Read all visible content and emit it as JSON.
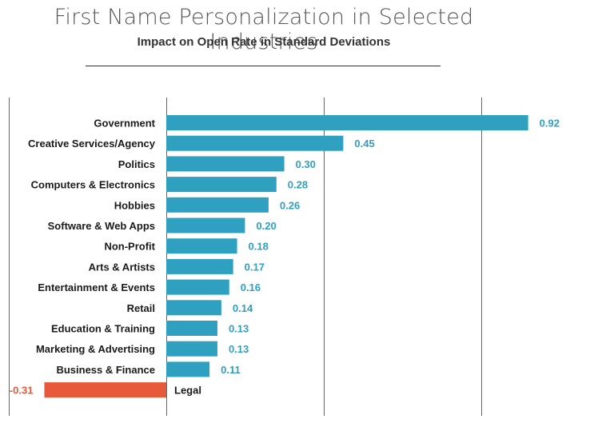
{
  "title": "First Name Personalization in Selected Industries",
  "subtitle": "Impact on Open Rate in Standard Deviations",
  "colors": {
    "positive": "#2fa0c0",
    "negative": "#e8583a",
    "label_positive": "#2fa0c0",
    "label_negative": "#e8583a"
  },
  "chart_data": {
    "type": "bar",
    "orientation": "horizontal",
    "title": "First Name Personalization in Selected Industries",
    "subtitle": "Impact on Open Rate in Standard Deviations",
    "categories": [
      "Government",
      "Creative Services/Agency",
      "Politics",
      "Computers & Electronics",
      "Hobbies",
      "Software & Web Apps",
      "Non-Profit",
      "Arts & Artists",
      "Entertainment & Events",
      "Retail",
      "Education & Training",
      "Marketing & Advertising",
      "Business & Finance",
      "Legal"
    ],
    "values": [
      0.92,
      0.45,
      0.3,
      0.28,
      0.26,
      0.2,
      0.18,
      0.17,
      0.16,
      0.14,
      0.13,
      0.13,
      0.11,
      -0.31
    ],
    "value_labels": [
      "0.92",
      "0.45",
      "0.30",
      "0.28",
      "0.26",
      "0.20",
      "0.18",
      "0.17",
      "0.16",
      "0.14",
      "0.13",
      "0.13",
      "0.11",
      "-0.31"
    ],
    "xlim": [
      -0.4,
      1.0
    ],
    "gridlines_at": [
      -0.4,
      0,
      0.4,
      0.8
    ],
    "grid": true,
    "legend": "none"
  }
}
